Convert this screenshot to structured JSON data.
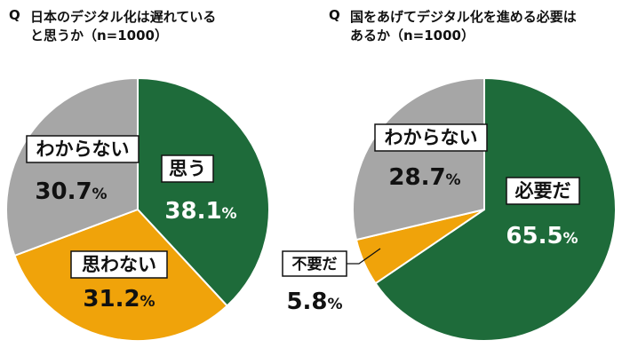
{
  "chart_data": [
    {
      "type": "pie",
      "question_mark": "Q",
      "title_lines": [
        "日本のデジタル化は遅れている",
        "と思うか（n=1000）"
      ],
      "slices": [
        {
          "label": "思う",
          "value": 38.1,
          "value_text": "38.1",
          "unit": "%",
          "color": "#1e6b3a"
        },
        {
          "label": "思わない",
          "value": 31.2,
          "value_text": "31.2",
          "unit": "%",
          "color": "#f0a30a"
        },
        {
          "label": "わからない",
          "value": 30.7,
          "value_text": "30.7",
          "unit": "%",
          "color": "#a6a6a6"
        }
      ]
    },
    {
      "type": "pie",
      "question_mark": "Q",
      "title_lines": [
        "国をあげてデジタル化を進める必要は",
        "あるか（n=1000）"
      ],
      "slices": [
        {
          "label": "必要だ",
          "value": 65.5,
          "value_text": "65.5",
          "unit": "%",
          "color": "#1e6b3a"
        },
        {
          "label": "不要だ",
          "value": 5.8,
          "value_text": "5.8",
          "unit": "%",
          "color": "#f0a30a"
        },
        {
          "label": "わからない",
          "value": 28.7,
          "value_text": "28.7",
          "unit": "%",
          "color": "#a6a6a6"
        }
      ]
    }
  ]
}
